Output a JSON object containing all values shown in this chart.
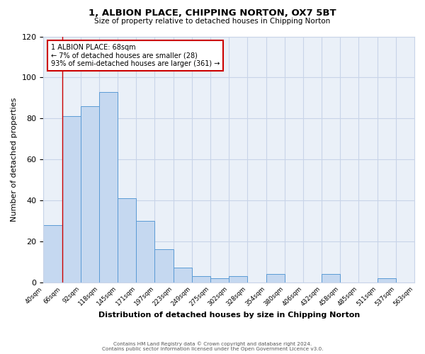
{
  "title": "1, ALBION PLACE, CHIPPING NORTON, OX7 5BT",
  "subtitle": "Size of property relative to detached houses in Chipping Norton",
  "xlabel": "Distribution of detached houses by size in Chipping Norton",
  "ylabel": "Number of detached properties",
  "bar_heights": [
    28,
    81,
    86,
    93,
    41,
    30,
    16,
    7,
    3,
    2,
    3,
    0,
    4,
    0,
    0,
    4,
    0,
    0,
    2,
    0
  ],
  "bin_labels": [
    "40sqm",
    "66sqm",
    "92sqm",
    "118sqm",
    "145sqm",
    "171sqm",
    "197sqm",
    "223sqm",
    "249sqm",
    "275sqm",
    "302sqm",
    "328sqm",
    "354sqm",
    "380sqm",
    "406sqm",
    "432sqm",
    "458sqm",
    "485sqm",
    "511sqm",
    "537sqm",
    "563sqm"
  ],
  "bar_color": "#c5d8f0",
  "bar_edge_color": "#5b9bd5",
  "marker_line_color": "#cc0000",
  "annotation_text": "1 ALBION PLACE: 68sqm\n← 7% of detached houses are smaller (28)\n93% of semi-detached houses are larger (361) →",
  "annotation_box_edge_color": "#cc0000",
  "ylim": [
    0,
    120
  ],
  "yticks": [
    0,
    20,
    40,
    60,
    80,
    100,
    120
  ],
  "footer_line1": "Contains HM Land Registry data © Crown copyright and database right 2024.",
  "footer_line2": "Contains public sector information licensed under the Open Government Licence v3.0.",
  "bg_color": "#ffffff",
  "grid_color": "#c8d4e8"
}
